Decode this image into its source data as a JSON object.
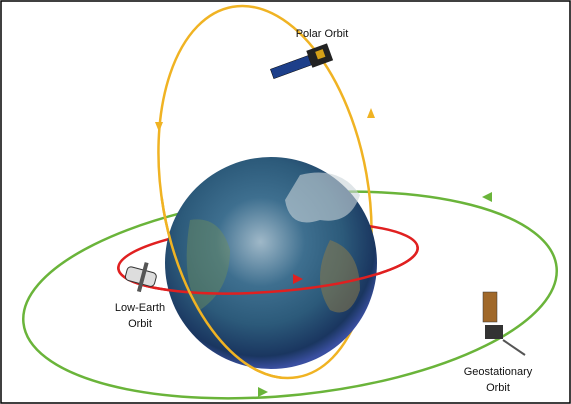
{
  "labels": {
    "polar": [
      "Polar Orbit"
    ],
    "low_earth": [
      "Low-Earth",
      "Orbit"
    ],
    "geostationary": [
      "Geostationary",
      "Orbit"
    ]
  }
}
